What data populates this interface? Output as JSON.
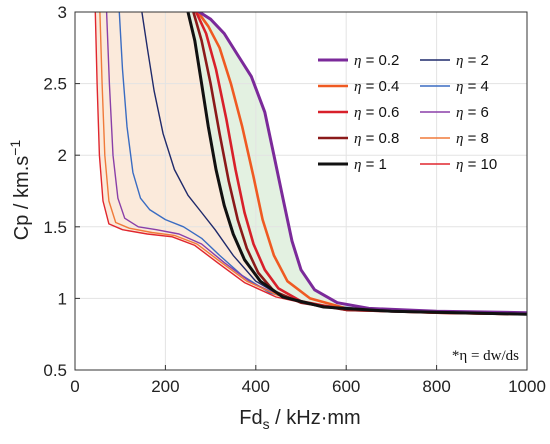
{
  "chart_data": {
    "type": "line",
    "xlabel_main": "Fd",
    "xlabel_sub": "s",
    "xlabel_rest": " / kHz·mm",
    "ylabel_main": "Cp / km.s",
    "ylabel_sup": "−1",
    "xlim": [
      0,
      1000
    ],
    "ylim": [
      0.5,
      3
    ],
    "xticks": [
      0,
      200,
      400,
      600,
      800,
      1000
    ],
    "yticks": [
      0.5,
      1,
      1.5,
      2,
      2.5,
      3
    ],
    "ytick_labels": [
      "0.5",
      "1",
      "1.5",
      "2",
      "2.5",
      "3"
    ],
    "grid": true,
    "legend_position": "top-right",
    "annotation": "*η = dw/ds",
    "shaded_regions": [
      {
        "between": [
          "η = 10",
          "η = 1"
        ],
        "color": "#fbeadb"
      },
      {
        "between": [
          "η = 1",
          "η = 0.2"
        ],
        "color": "#e3f1e1"
      }
    ],
    "series": [
      {
        "name": "η = 0.2",
        "color": "#7b2a9a",
        "width": 3.0,
        "points": [
          [
            275,
            3.0
          ],
          [
            300,
            2.95
          ],
          [
            330,
            2.85
          ],
          [
            360,
            2.7
          ],
          [
            390,
            2.55
          ],
          [
            420,
            2.3
          ],
          [
            440,
            2.0
          ],
          [
            460,
            1.7
          ],
          [
            480,
            1.4
          ],
          [
            500,
            1.2
          ],
          [
            530,
            1.06
          ],
          [
            580,
            0.97
          ],
          [
            650,
            0.93
          ],
          [
            800,
            0.91
          ],
          [
            1000,
            0.9
          ]
        ]
      },
      {
        "name": "η = 0.4",
        "color": "#ef5a22",
        "width": 2.6,
        "points": [
          [
            272,
            3.0
          ],
          [
            295,
            2.9
          ],
          [
            320,
            2.75
          ],
          [
            345,
            2.5
          ],
          [
            370,
            2.2
          ],
          [
            395,
            1.85
          ],
          [
            415,
            1.55
          ],
          [
            440,
            1.3
          ],
          [
            470,
            1.12
          ],
          [
            520,
            1.0
          ],
          [
            600,
            0.93
          ],
          [
            800,
            0.9
          ],
          [
            1000,
            0.89
          ]
        ]
      },
      {
        "name": "η = 0.6",
        "color": "#d8202a",
        "width": 2.6,
        "points": [
          [
            268,
            3.0
          ],
          [
            290,
            2.85
          ],
          [
            312,
            2.6
          ],
          [
            335,
            2.25
          ],
          [
            355,
            1.9
          ],
          [
            375,
            1.6
          ],
          [
            395,
            1.38
          ],
          [
            420,
            1.2
          ],
          [
            450,
            1.07
          ],
          [
            500,
            0.98
          ],
          [
            600,
            0.92
          ],
          [
            800,
            0.9
          ],
          [
            1000,
            0.89
          ]
        ]
      },
      {
        "name": "η = 0.8",
        "color": "#8b1a1a",
        "width": 2.6,
        "points": [
          [
            262,
            3.0
          ],
          [
            280,
            2.8
          ],
          [
            300,
            2.5
          ],
          [
            320,
            2.15
          ],
          [
            340,
            1.82
          ],
          [
            360,
            1.55
          ],
          [
            380,
            1.35
          ],
          [
            405,
            1.18
          ],
          [
            440,
            1.05
          ],
          [
            500,
            0.97
          ],
          [
            600,
            0.92
          ],
          [
            800,
            0.9
          ],
          [
            1000,
            0.89
          ]
        ]
      },
      {
        "name": "η = 1",
        "color": "#111111",
        "width": 3.0,
        "points": [
          [
            250,
            3.0
          ],
          [
            265,
            2.8
          ],
          [
            280,
            2.5
          ],
          [
            295,
            2.2
          ],
          [
            312,
            1.9
          ],
          [
            330,
            1.65
          ],
          [
            350,
            1.45
          ],
          [
            375,
            1.27
          ],
          [
            410,
            1.12
          ],
          [
            460,
            1.01
          ],
          [
            550,
            0.94
          ],
          [
            700,
            0.91
          ],
          [
            1000,
            0.89
          ]
        ]
      },
      {
        "name": "η = 2",
        "color": "#1f2a6b",
        "width": 1.4,
        "points": [
          [
            148,
            3.0
          ],
          [
            160,
            2.75
          ],
          [
            175,
            2.45
          ],
          [
            195,
            2.15
          ],
          [
            220,
            1.9
          ],
          [
            250,
            1.72
          ],
          [
            280,
            1.6
          ],
          [
            310,
            1.48
          ],
          [
            350,
            1.3
          ],
          [
            400,
            1.12
          ],
          [
            460,
            1.01
          ],
          [
            550,
            0.94
          ],
          [
            700,
            0.91
          ],
          [
            1000,
            0.89
          ]
        ]
      },
      {
        "name": "η = 4",
        "color": "#3a6cc2",
        "width": 1.4,
        "points": [
          [
            98,
            3.0
          ],
          [
            105,
            2.6
          ],
          [
            115,
            2.2
          ],
          [
            128,
            1.88
          ],
          [
            145,
            1.7
          ],
          [
            165,
            1.62
          ],
          [
            200,
            1.55
          ],
          [
            240,
            1.5
          ],
          [
            280,
            1.42
          ],
          [
            320,
            1.3
          ],
          [
            370,
            1.16
          ],
          [
            430,
            1.04
          ],
          [
            520,
            0.96
          ],
          [
            700,
            0.91
          ],
          [
            1000,
            0.89
          ]
        ]
      },
      {
        "name": "η = 6",
        "color": "#8a3fa8",
        "width": 1.4,
        "points": [
          [
            70,
            3.0
          ],
          [
            76,
            2.5
          ],
          [
            84,
            2.0
          ],
          [
            95,
            1.7
          ],
          [
            110,
            1.56
          ],
          [
            140,
            1.5
          ],
          [
            180,
            1.48
          ],
          [
            230,
            1.45
          ],
          [
            280,
            1.38
          ],
          [
            330,
            1.25
          ],
          [
            390,
            1.11
          ],
          [
            460,
            1.01
          ],
          [
            560,
            0.94
          ],
          [
            700,
            0.91
          ],
          [
            1000,
            0.89
          ]
        ]
      },
      {
        "name": "η = 8",
        "color": "#f07a3a",
        "width": 1.4,
        "points": [
          [
            55,
            3.0
          ],
          [
            60,
            2.5
          ],
          [
            66,
            2.0
          ],
          [
            75,
            1.68
          ],
          [
            90,
            1.53
          ],
          [
            120,
            1.49
          ],
          [
            170,
            1.46
          ],
          [
            220,
            1.44
          ],
          [
            270,
            1.38
          ],
          [
            320,
            1.26
          ],
          [
            380,
            1.12
          ],
          [
            450,
            1.02
          ],
          [
            550,
            0.94
          ],
          [
            700,
            0.91
          ],
          [
            1000,
            0.89
          ]
        ]
      },
      {
        "name": "η = 10",
        "color": "#e0262e",
        "width": 1.4,
        "points": [
          [
            45,
            3.0
          ],
          [
            49,
            2.5
          ],
          [
            54,
            2.0
          ],
          [
            62,
            1.68
          ],
          [
            75,
            1.52
          ],
          [
            105,
            1.48
          ],
          [
            160,
            1.45
          ],
          [
            215,
            1.43
          ],
          [
            265,
            1.37
          ],
          [
            315,
            1.25
          ],
          [
            375,
            1.11
          ],
          [
            445,
            1.01
          ],
          [
            545,
            0.94
          ],
          [
            700,
            0.91
          ],
          [
            1000,
            0.89
          ]
        ]
      }
    ]
  }
}
